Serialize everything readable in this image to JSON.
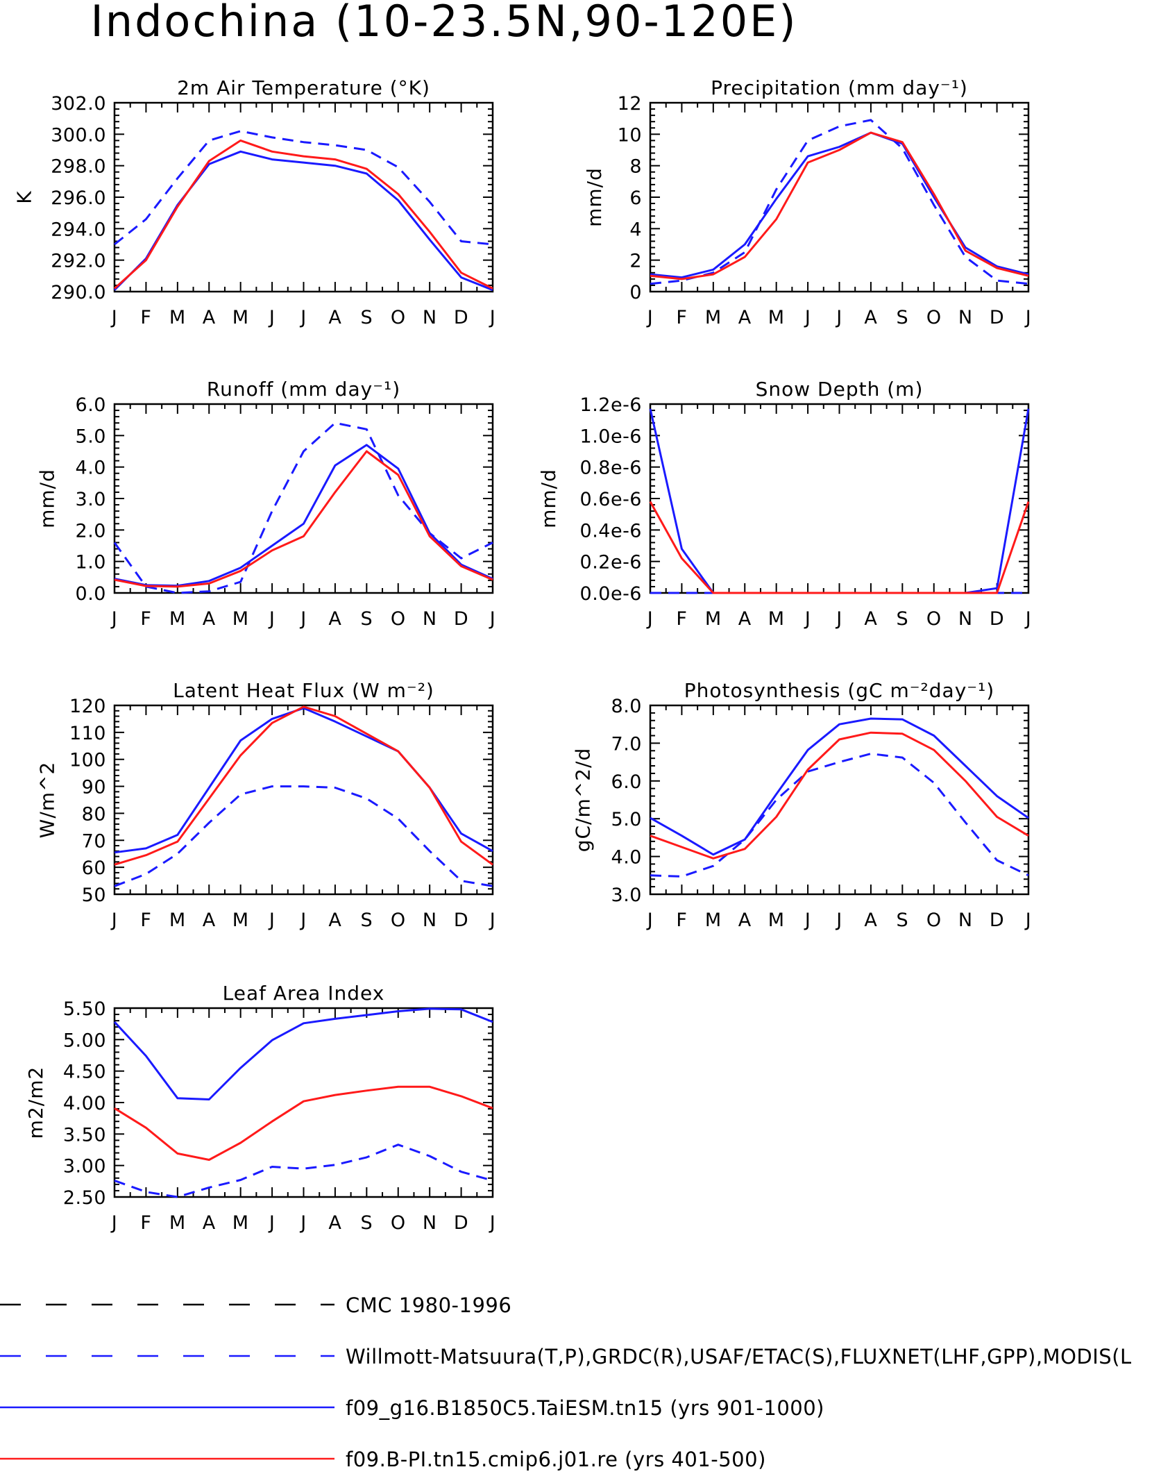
{
  "figure_title": "Indochina (10-23.5N,90-120E)",
  "chart_data": [
    {
      "type": "line",
      "title": "2m Air Temperature (°K)",
      "ylabel": "K",
      "xlabel": "",
      "categories": [
        "J",
        "F",
        "M",
        "A",
        "M",
        "J",
        "J",
        "A",
        "S",
        "O",
        "N",
        "D",
        "J"
      ],
      "ylim": [
        290,
        302
      ],
      "yticks": [
        "290.0",
        "292.0",
        "294.0",
        "296.0",
        "298.0",
        "300.0",
        "302.0"
      ],
      "series": [
        {
          "style": "blue-dashed",
          "values": [
            293.0,
            294.6,
            297.2,
            299.6,
            300.2,
            299.8,
            299.5,
            299.3,
            299.0,
            297.9,
            295.7,
            293.2,
            293.0
          ]
        },
        {
          "style": "blue-solid",
          "values": [
            290.1,
            292.1,
            295.5,
            298.1,
            298.9,
            298.4,
            298.2,
            298.0,
            297.5,
            295.8,
            293.3,
            290.9,
            290.1
          ]
        },
        {
          "style": "red-solid",
          "values": [
            290.2,
            292.0,
            295.4,
            298.3,
            299.6,
            298.9,
            298.6,
            298.4,
            297.8,
            296.2,
            293.8,
            291.2,
            290.2
          ]
        }
      ]
    },
    {
      "type": "line",
      "title": "Precipitation (mm day⁻¹)",
      "ylabel": "mm/d",
      "xlabel": "",
      "categories": [
        "J",
        "F",
        "M",
        "A",
        "M",
        "J",
        "J",
        "A",
        "S",
        "O",
        "N",
        "D",
        "J"
      ],
      "ylim": [
        0,
        12
      ],
      "yticks": [
        "0",
        "2",
        "4",
        "6",
        "8",
        "10",
        "12"
      ],
      "series": [
        {
          "style": "blue-dashed",
          "values": [
            0.5,
            0.7,
            1.2,
            2.5,
            6.5,
            9.6,
            10.5,
            10.9,
            9.1,
            5.5,
            2.2,
            0.7,
            0.5
          ]
        },
        {
          "style": "blue-solid",
          "values": [
            1.1,
            0.9,
            1.4,
            3.0,
            5.9,
            8.6,
            9.2,
            10.1,
            9.4,
            6.0,
            2.8,
            1.6,
            1.1
          ]
        },
        {
          "style": "red-solid",
          "values": [
            1.0,
            0.8,
            1.1,
            2.2,
            4.6,
            8.2,
            9.0,
            10.1,
            9.5,
            6.2,
            2.6,
            1.5,
            1.0
          ]
        }
      ]
    },
    {
      "type": "line",
      "title": "Runoff (mm day⁻¹)",
      "ylabel": "mm/d",
      "xlabel": "",
      "categories": [
        "J",
        "F",
        "M",
        "A",
        "M",
        "J",
        "J",
        "A",
        "S",
        "O",
        "N",
        "D",
        "J"
      ],
      "ylim": [
        0,
        6
      ],
      "yticks": [
        "0.0",
        "1.0",
        "2.0",
        "3.0",
        "4.0",
        "5.0",
        "6.0"
      ],
      "series": [
        {
          "style": "blue-dashed",
          "values": [
            1.6,
            0.2,
            0.0,
            0.05,
            0.35,
            2.6,
            4.5,
            5.4,
            5.2,
            3.1,
            1.9,
            1.1,
            1.6
          ]
        },
        {
          "style": "blue-solid",
          "values": [
            0.45,
            0.25,
            0.23,
            0.38,
            0.8,
            1.5,
            2.2,
            4.05,
            4.7,
            3.95,
            1.9,
            0.9,
            0.45
          ]
        },
        {
          "style": "red-solid",
          "values": [
            0.42,
            0.22,
            0.2,
            0.3,
            0.7,
            1.35,
            1.8,
            3.2,
            4.5,
            3.75,
            1.8,
            0.85,
            0.42
          ]
        }
      ]
    },
    {
      "type": "line",
      "title": "Snow Depth (m)",
      "ylabel": "mm/d",
      "xlabel": "",
      "categories": [
        "J",
        "F",
        "M",
        "A",
        "M",
        "J",
        "J",
        "A",
        "S",
        "O",
        "N",
        "D",
        "J"
      ],
      "ylim": [
        0,
        1.2e-06
      ],
      "yticks": [
        "0.0e-6",
        "0.2e-6",
        "0.4e-6",
        "0.6e-6",
        "0.8e-6",
        "1.0e-6",
        "1.2e-6"
      ],
      "series": [
        {
          "style": "blue-dashed",
          "values": [
            0,
            0,
            0,
            0,
            0,
            0,
            0,
            0,
            0,
            0,
            0,
            0,
            0
          ]
        },
        {
          "style": "blue-solid",
          "values": [
            1.17e-06,
            2.8e-07,
            0,
            0,
            0,
            0,
            0,
            0,
            0,
            0,
            0,
            3e-08,
            1.17e-06
          ]
        },
        {
          "style": "red-solid",
          "values": [
            5.8e-07,
            2.2e-07,
            0,
            0,
            0,
            0,
            0,
            0,
            0,
            0,
            0,
            0,
            5.8e-07
          ]
        }
      ]
    },
    {
      "type": "line",
      "title": "Latent Heat Flux (W m⁻²)",
      "ylabel": "W/m^2",
      "xlabel": "",
      "categories": [
        "J",
        "F",
        "M",
        "A",
        "M",
        "J",
        "J",
        "A",
        "S",
        "O",
        "N",
        "D",
        "J"
      ],
      "ylim": [
        50,
        120
      ],
      "yticks": [
        "50",
        "60",
        "70",
        "80",
        "90",
        "100",
        "110",
        "120"
      ],
      "series": [
        {
          "style": "blue-dashed",
          "values": [
            53,
            57.5,
            65,
            76.5,
            87,
            90,
            90,
            89.5,
            85.5,
            78,
            66,
            55,
            53
          ]
        },
        {
          "style": "blue-solid",
          "values": [
            65.5,
            67,
            72,
            89.5,
            107,
            115,
            119,
            114,
            108.5,
            103,
            89.5,
            72.5,
            66
          ]
        },
        {
          "style": "red-solid",
          "values": [
            61,
            64.5,
            69.5,
            85.5,
            101.5,
            113.5,
            119.5,
            116,
            109.5,
            103,
            89.5,
            69.5,
            61
          ]
        }
      ]
    },
    {
      "type": "line",
      "title": "Photosynthesis (gC m⁻²day⁻¹)",
      "ylabel": "gC/m^2/d",
      "xlabel": "",
      "categories": [
        "J",
        "F",
        "M",
        "A",
        "M",
        "J",
        "J",
        "A",
        "S",
        "O",
        "N",
        "D",
        "J"
      ],
      "ylim": [
        3,
        8
      ],
      "yticks": [
        "3.0",
        "4.0",
        "5.0",
        "6.0",
        "7.0",
        "8.0"
      ],
      "series": [
        {
          "style": "blue-dashed",
          "values": [
            3.5,
            3.47,
            3.75,
            4.45,
            5.5,
            6.25,
            6.5,
            6.72,
            6.62,
            5.95,
            4.9,
            3.9,
            3.5
          ]
        },
        {
          "style": "blue-solid",
          "values": [
            5.02,
            4.55,
            4.05,
            4.45,
            5.65,
            6.82,
            7.5,
            7.65,
            7.63,
            7.2,
            6.4,
            5.6,
            5.02
          ]
        },
        {
          "style": "red-solid",
          "values": [
            4.55,
            4.25,
            3.95,
            4.2,
            5.05,
            6.3,
            7.1,
            7.28,
            7.25,
            6.82,
            6.0,
            5.05,
            4.55
          ]
        }
      ]
    },
    {
      "type": "line",
      "title": "Leaf Area Index",
      "ylabel": "m2/m2",
      "xlabel": "",
      "categories": [
        "J",
        "F",
        "M",
        "A",
        "M",
        "J",
        "J",
        "A",
        "S",
        "O",
        "N",
        "D",
        "J"
      ],
      "ylim": [
        2.5,
        5.5
      ],
      "yticks": [
        "2.50",
        "3.00",
        "3.50",
        "4.00",
        "4.50",
        "5.00",
        "5.50"
      ],
      "series": [
        {
          "style": "blue-dashed",
          "values": [
            2.76,
            2.58,
            2.5,
            2.65,
            2.77,
            2.98,
            2.95,
            3.01,
            3.13,
            3.33,
            3.15,
            2.9,
            2.76
          ]
        },
        {
          "style": "blue-solid",
          "values": [
            5.28,
            4.74,
            4.07,
            4.05,
            4.55,
            4.99,
            5.26,
            5.33,
            5.39,
            5.45,
            5.49,
            5.48,
            5.28
          ]
        },
        {
          "style": "red-solid",
          "values": [
            3.91,
            3.6,
            3.19,
            3.09,
            3.36,
            3.7,
            4.02,
            4.12,
            4.19,
            4.25,
            4.25,
            4.1,
            3.91
          ]
        }
      ]
    }
  ],
  "legend": [
    {
      "style": "black-dashed",
      "label": "CMC 1980-1996"
    },
    {
      "style": "blue-dashed",
      "label": "Willmott-Matsuura(T,P),GRDC(R),USAF/ETAC(S),FLUXNET(LHF,GPP),MODIS(L"
    },
    {
      "style": "blue-solid",
      "label": "f09_g16.B1850C5.TaiESM.tn15 (yrs 901-1000)"
    },
    {
      "style": "red-solid",
      "label": "f09.B-PI.tn15.cmip6.j01.re (yrs 401-500)"
    }
  ],
  "colors": {
    "blue-dashed": "#1a1aff",
    "blue-solid": "#1a1aff",
    "red-solid": "#ff1a1a",
    "black-dashed": "#000000"
  }
}
